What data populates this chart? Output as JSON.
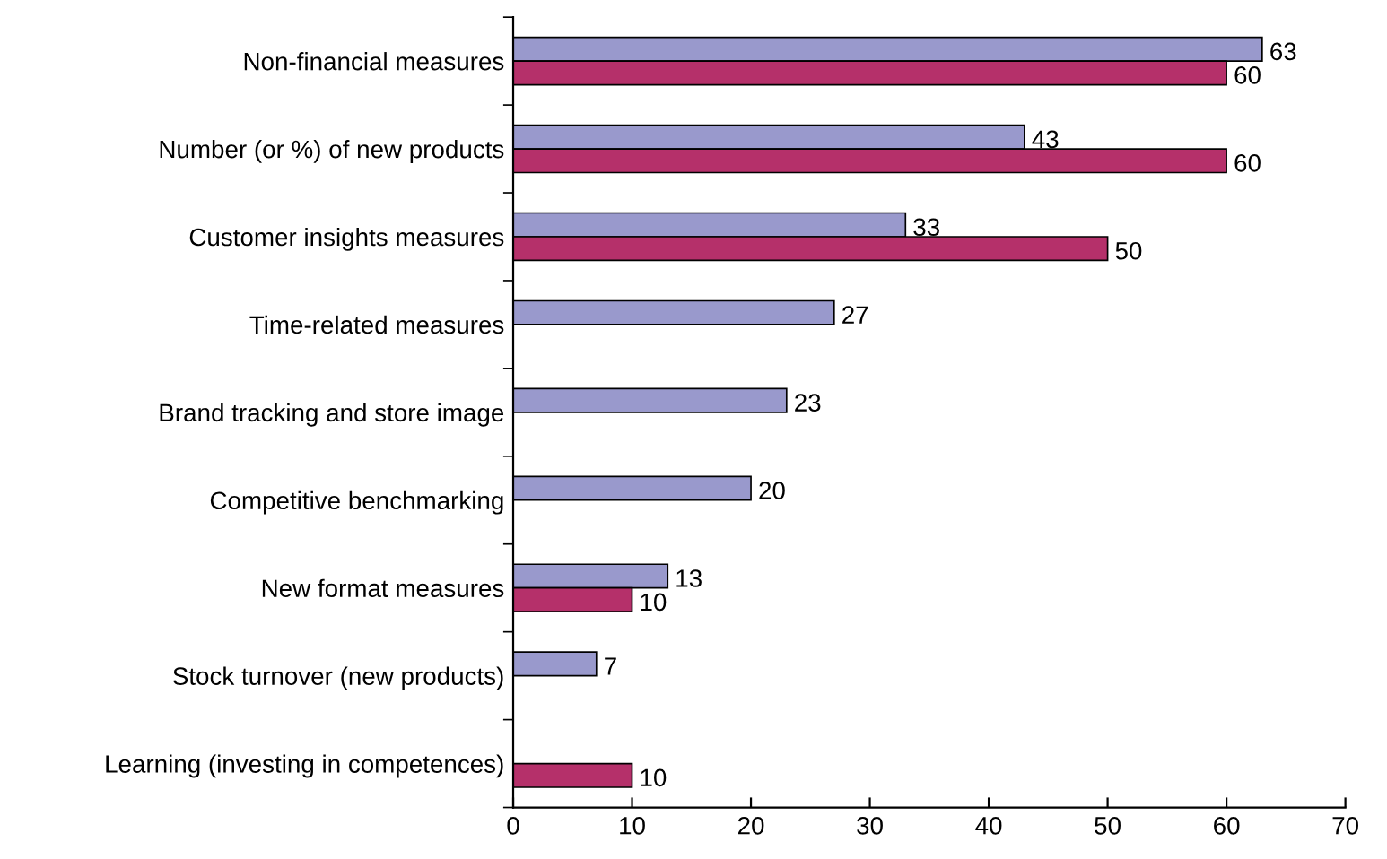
{
  "chart_data": {
    "type": "bar",
    "orientation": "horizontal",
    "categories": [
      "Non-financial measures",
      "Number (or %) of new products",
      "Customer insights measures",
      "Time-related measures",
      "Brand tracking and store image",
      "Competitive benchmarking",
      "New format measures",
      "Stock turnover (new products)",
      "Learning (investing in competences)"
    ],
    "series": [
      {
        "color": "#9999cc",
        "values": [
          63,
          43,
          33,
          27,
          23,
          20,
          13,
          7,
          null
        ]
      },
      {
        "color": "#b5306a",
        "values": [
          60,
          60,
          50,
          null,
          null,
          null,
          10,
          null,
          10
        ]
      }
    ],
    "xlim": [
      0,
      70
    ],
    "xticks": [
      0,
      10,
      20,
      30,
      40,
      50,
      60,
      70
    ],
    "data_labels": true,
    "grid": false,
    "legend": false
  }
}
